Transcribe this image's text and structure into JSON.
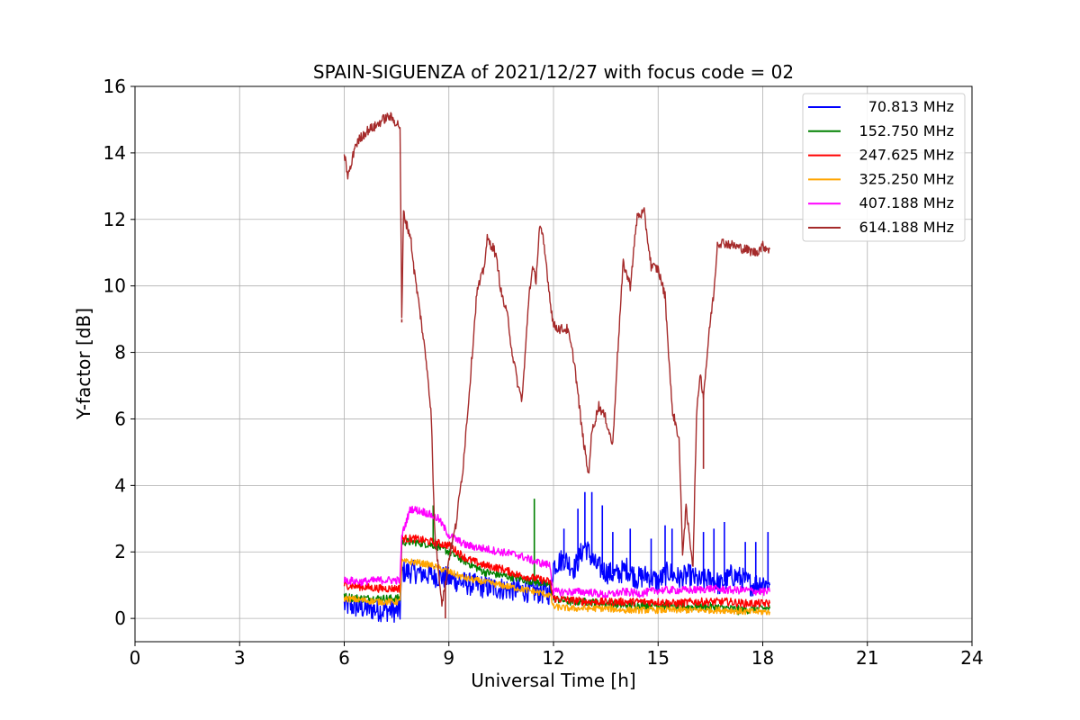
{
  "chart_data": {
    "type": "line",
    "title": "SPAIN-SIGUENZA of 2021/12/27 with focus code = 02",
    "xlabel": "Universal Time [h]",
    "ylabel": "Y-factor [dB]",
    "xlim": [
      0,
      24
    ],
    "ylim": [
      -0.7,
      16
    ],
    "xticks": [
      0,
      3,
      6,
      9,
      12,
      15,
      18,
      21,
      24
    ],
    "yticks": [
      0,
      2,
      4,
      6,
      8,
      10,
      12,
      14,
      16
    ],
    "grid": true,
    "legend_position": "top-right",
    "series": [
      {
        "name": "70.813 MHz",
        "color": "#0000ff",
        "points": [
          [
            6.0,
            0.4
          ],
          [
            6.3,
            0.35
          ],
          [
            6.6,
            0.3
          ],
          [
            7.0,
            0.25
          ],
          [
            7.3,
            0.25
          ],
          [
            7.6,
            0.2
          ],
          [
            7.65,
            1.4
          ],
          [
            8.0,
            1.4
          ],
          [
            8.5,
            1.3
          ],
          [
            9.0,
            1.2
          ],
          [
            9.5,
            1.05
          ],
          [
            10.0,
            0.95
          ],
          [
            10.5,
            0.9
          ],
          [
            11.0,
            0.85
          ],
          [
            11.5,
            0.8
          ],
          [
            11.9,
            0.75
          ],
          [
            12.0,
            1.6
          ],
          [
            12.3,
            1.8
          ],
          [
            12.6,
            1.5
          ],
          [
            12.9,
            2.2
          ],
          [
            13.2,
            1.6
          ],
          [
            13.5,
            1.4
          ],
          [
            13.8,
            1.3
          ],
          [
            14.1,
            1.5
          ],
          [
            14.4,
            1.2
          ],
          [
            14.7,
            1.3
          ],
          [
            15.0,
            1.1
          ],
          [
            15.3,
            1.4
          ],
          [
            15.6,
            1.2
          ],
          [
            15.9,
            1.3
          ],
          [
            16.2,
            1.1
          ],
          [
            16.5,
            1.2
          ],
          [
            16.8,
            1.0
          ],
          [
            17.1,
            1.3
          ],
          [
            17.4,
            1.2
          ],
          [
            17.7,
            1.0
          ],
          [
            18.0,
            1.1
          ],
          [
            18.2,
            1.0
          ]
        ],
        "spikes": [
          [
            12.3,
            2.7
          ],
          [
            12.7,
            3.3
          ],
          [
            12.9,
            3.8
          ],
          [
            13.1,
            3.8
          ],
          [
            13.4,
            3.4
          ],
          [
            13.7,
            2.6
          ],
          [
            14.2,
            2.7
          ],
          [
            14.8,
            2.4
          ],
          [
            15.2,
            2.8
          ],
          [
            15.4,
            2.7
          ],
          [
            16.3,
            2.6
          ],
          [
            16.6,
            2.7
          ],
          [
            16.9,
            2.9
          ],
          [
            17.5,
            2.3
          ],
          [
            17.8,
            2.3
          ],
          [
            18.15,
            2.6
          ]
        ]
      },
      {
        "name": "152.750 MHz",
        "color": "#008000",
        "points": [
          [
            6.0,
            0.65
          ],
          [
            6.5,
            0.6
          ],
          [
            7.0,
            0.6
          ],
          [
            7.6,
            0.6
          ],
          [
            7.65,
            2.3
          ],
          [
            8.0,
            2.3
          ],
          [
            8.6,
            2.2
          ],
          [
            9.0,
            2.0
          ],
          [
            9.5,
            1.7
          ],
          [
            10.0,
            1.4
          ],
          [
            10.5,
            1.3
          ],
          [
            11.0,
            1.2
          ],
          [
            11.5,
            1.1
          ],
          [
            11.9,
            1.0
          ],
          [
            12.0,
            0.6
          ],
          [
            12.5,
            0.5
          ],
          [
            13.0,
            0.5
          ],
          [
            13.5,
            0.45
          ],
          [
            14.0,
            0.4
          ],
          [
            14.5,
            0.4
          ],
          [
            15.0,
            0.4
          ],
          [
            15.5,
            0.35
          ],
          [
            16.0,
            0.35
          ],
          [
            16.5,
            0.35
          ],
          [
            17.0,
            0.3
          ],
          [
            17.5,
            0.25
          ],
          [
            18.0,
            0.3
          ],
          [
            18.2,
            0.3
          ]
        ],
        "spikes": [
          [
            8.55,
            3.4
          ],
          [
            11.45,
            3.6
          ],
          [
            17.3,
            0.1
          ]
        ]
      },
      {
        "name": "247.625 MHz",
        "color": "#ff0000",
        "points": [
          [
            6.0,
            1.0
          ],
          [
            6.5,
            0.95
          ],
          [
            7.0,
            0.9
          ],
          [
            7.6,
            0.9
          ],
          [
            7.65,
            2.4
          ],
          [
            8.0,
            2.4
          ],
          [
            8.5,
            2.3
          ],
          [
            9.0,
            2.2
          ],
          [
            9.5,
            1.8
          ],
          [
            10.0,
            1.6
          ],
          [
            10.5,
            1.5
          ],
          [
            11.0,
            1.3
          ],
          [
            11.5,
            1.2
          ],
          [
            11.9,
            1.1
          ],
          [
            12.0,
            0.6
          ],
          [
            12.5,
            0.55
          ],
          [
            13.0,
            0.5
          ],
          [
            13.5,
            0.5
          ],
          [
            14.0,
            0.5
          ],
          [
            14.5,
            0.5
          ],
          [
            15.0,
            0.5
          ],
          [
            15.5,
            0.45
          ],
          [
            16.0,
            0.5
          ],
          [
            16.5,
            0.5
          ],
          [
            17.0,
            0.5
          ],
          [
            17.5,
            0.45
          ],
          [
            18.0,
            0.45
          ],
          [
            18.2,
            0.45
          ]
        ],
        "spikes": []
      },
      {
        "name": "325.250 MHz",
        "color": "#ffa500",
        "points": [
          [
            6.0,
            0.6
          ],
          [
            6.5,
            0.55
          ],
          [
            7.0,
            0.5
          ],
          [
            7.6,
            0.5
          ],
          [
            7.65,
            1.7
          ],
          [
            8.0,
            1.7
          ],
          [
            8.5,
            1.6
          ],
          [
            9.0,
            1.4
          ],
          [
            9.5,
            1.2
          ],
          [
            10.0,
            1.1
          ],
          [
            10.5,
            1.0
          ],
          [
            11.0,
            0.9
          ],
          [
            11.5,
            0.8
          ],
          [
            11.9,
            0.7
          ],
          [
            12.0,
            0.35
          ],
          [
            12.5,
            0.3
          ],
          [
            13.0,
            0.3
          ],
          [
            13.5,
            0.3
          ],
          [
            14.0,
            0.25
          ],
          [
            14.5,
            0.25
          ],
          [
            15.0,
            0.25
          ],
          [
            15.5,
            0.25
          ],
          [
            16.0,
            0.25
          ],
          [
            16.5,
            0.25
          ],
          [
            17.0,
            0.25
          ],
          [
            17.5,
            0.2
          ],
          [
            18.0,
            0.2
          ],
          [
            18.2,
            0.2
          ]
        ],
        "spikes": []
      },
      {
        "name": "407.188 MHz",
        "color": "#ff00ff",
        "points": [
          [
            6.0,
            1.15
          ],
          [
            6.5,
            1.1
          ],
          [
            7.0,
            1.15
          ],
          [
            7.6,
            1.15
          ],
          [
            7.65,
            2.5
          ],
          [
            7.9,
            3.3
          ],
          [
            8.3,
            3.2
          ],
          [
            8.7,
            3.0
          ],
          [
            9.0,
            2.5
          ],
          [
            9.5,
            2.2
          ],
          [
            10.0,
            2.1
          ],
          [
            10.5,
            2.0
          ],
          [
            11.0,
            1.9
          ],
          [
            11.5,
            1.7
          ],
          [
            11.9,
            1.6
          ],
          [
            12.0,
            0.8
          ],
          [
            12.5,
            0.8
          ],
          [
            13.0,
            0.8
          ],
          [
            13.5,
            0.7
          ],
          [
            14.0,
            0.8
          ],
          [
            14.5,
            0.75
          ],
          [
            15.0,
            0.85
          ],
          [
            15.5,
            0.85
          ],
          [
            16.0,
            0.85
          ],
          [
            16.5,
            0.9
          ],
          [
            17.0,
            0.85
          ],
          [
            17.5,
            0.85
          ],
          [
            18.0,
            0.8
          ],
          [
            18.2,
            0.8
          ]
        ],
        "spikes": []
      },
      {
        "name": "614.188 MHz",
        "color": "#a52a2a",
        "points": [
          [
            6.0,
            14.0
          ],
          [
            6.1,
            13.3
          ],
          [
            6.2,
            13.6
          ],
          [
            6.3,
            14.2
          ],
          [
            6.5,
            14.5
          ],
          [
            6.7,
            14.7
          ],
          [
            6.9,
            14.8
          ],
          [
            7.1,
            15.0
          ],
          [
            7.3,
            15.1
          ],
          [
            7.5,
            14.9
          ],
          [
            7.6,
            14.8
          ],
          [
            7.65,
            9.0
          ],
          [
            7.7,
            12.2
          ],
          [
            7.8,
            11.8
          ],
          [
            7.9,
            11.5
          ],
          [
            8.0,
            10.5
          ],
          [
            8.2,
            9.0
          ],
          [
            8.4,
            7.3
          ],
          [
            8.5,
            6.0
          ],
          [
            8.55,
            4.0
          ],
          [
            8.6,
            2.5
          ],
          [
            8.7,
            1.5
          ],
          [
            8.8,
            0.5
          ],
          [
            8.9,
            1.0
          ],
          [
            9.0,
            1.8
          ],
          [
            9.2,
            2.8
          ],
          [
            9.4,
            4.5
          ],
          [
            9.6,
            7.0
          ],
          [
            9.8,
            9.8
          ],
          [
            10.0,
            10.5
          ],
          [
            10.1,
            11.4
          ],
          [
            10.3,
            11.1
          ],
          [
            10.4,
            10.6
          ],
          [
            10.5,
            9.8
          ],
          [
            10.7,
            9.0
          ],
          [
            10.8,
            8.1
          ],
          [
            11.0,
            6.9
          ],
          [
            11.1,
            6.6
          ],
          [
            11.2,
            8.1
          ],
          [
            11.3,
            9.8
          ],
          [
            11.4,
            10.5
          ],
          [
            11.5,
            10.2
          ],
          [
            11.6,
            11.8
          ],
          [
            11.7,
            11.4
          ],
          [
            11.8,
            10.6
          ],
          [
            11.9,
            9.6
          ],
          [
            12.0,
            8.8
          ],
          [
            12.2,
            8.7
          ],
          [
            12.4,
            8.7
          ],
          [
            12.6,
            7.7
          ],
          [
            12.8,
            5.8
          ],
          [
            13.0,
            4.3
          ],
          [
            13.1,
            5.6
          ],
          [
            13.3,
            6.4
          ],
          [
            13.5,
            6.0
          ],
          [
            13.7,
            5.2
          ],
          [
            13.8,
            7.3
          ],
          [
            14.0,
            10.7
          ],
          [
            14.2,
            10.0
          ],
          [
            14.4,
            12.1
          ],
          [
            14.6,
            12.2
          ],
          [
            14.8,
            10.6
          ],
          [
            15.0,
            10.5
          ],
          [
            15.2,
            9.7
          ],
          [
            15.4,
            6.3
          ],
          [
            15.6,
            5.4
          ],
          [
            15.7,
            2.0
          ],
          [
            15.8,
            3.3
          ],
          [
            16.0,
            1.6
          ],
          [
            16.1,
            6.0
          ],
          [
            16.2,
            7.4
          ],
          [
            16.3,
            6.7
          ],
          [
            16.5,
            9.0
          ],
          [
            16.6,
            9.8
          ],
          [
            16.7,
            11.3
          ],
          [
            16.9,
            11.3
          ],
          [
            17.2,
            11.2
          ],
          [
            17.5,
            11.1
          ],
          [
            17.8,
            11.0
          ],
          [
            18.0,
            11.2
          ],
          [
            18.2,
            11.1
          ]
        ],
        "spikes": [
          [
            7.65,
            8.9
          ],
          [
            8.9,
            0.0
          ],
          [
            16.3,
            4.5
          ]
        ]
      }
    ]
  }
}
